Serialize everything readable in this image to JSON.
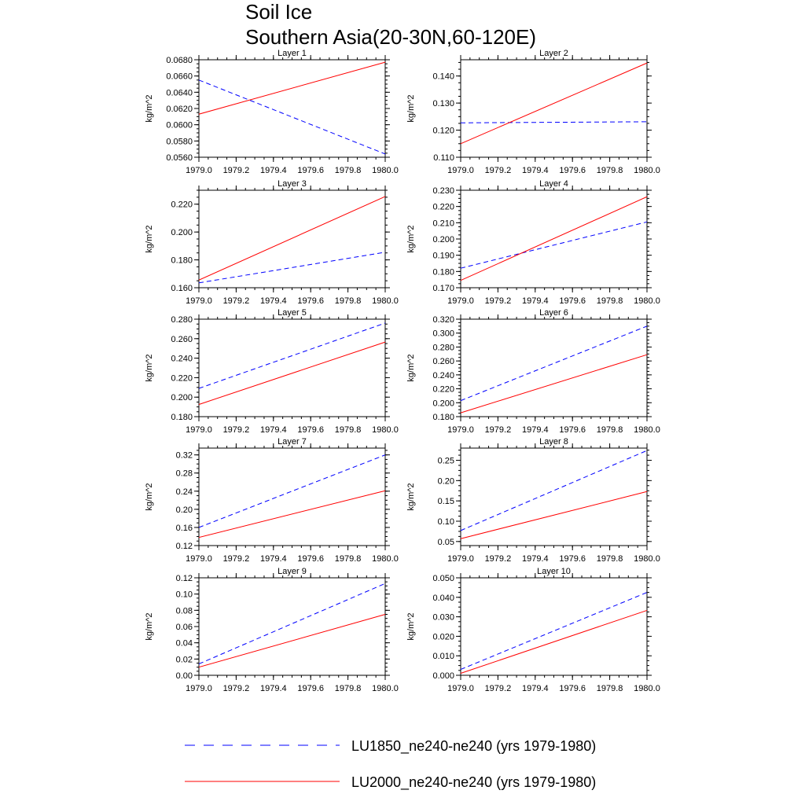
{
  "figure": {
    "title_line1": "Soil Ice",
    "title_line2": "Southern Asia(20-30N,60-120E)"
  },
  "colors": {
    "series1": "#0000ff",
    "series2": "#ff0000"
  },
  "legend": {
    "items": [
      {
        "label": "LU1850_ne240-ne240 (yrs 1979-1980)",
        "color": "#0000ff",
        "style": "dashed"
      },
      {
        "label": "LU2000_ne240-ne240 (yrs 1979-1980)",
        "color": "#ff0000",
        "style": "solid"
      }
    ]
  },
  "chart_data": [
    {
      "type": "line",
      "title": "Layer 1",
      "ylabel": "kg/m^2",
      "x": [
        1979.0,
        1980.0
      ],
      "xlim": [
        1979.0,
        1980.0
      ],
      "xticks": [
        "1979.0",
        "1979.2",
        "1979.4",
        "1979.6",
        "1979.8",
        "1980.0"
      ],
      "ylim": [
        0.056,
        0.068
      ],
      "yticks": [
        "0.0560",
        "0.0580",
        "0.0600",
        "0.0620",
        "0.0640",
        "0.0660",
        "0.0680"
      ],
      "series": [
        {
          "name": "LU1850_ne240-ne240 (yrs 1979-1980)",
          "values": [
            0.0655,
            0.0564
          ]
        },
        {
          "name": "LU2000_ne240-ne240 (yrs 1979-1980)",
          "values": [
            0.0613,
            0.0677
          ]
        }
      ]
    },
    {
      "type": "line",
      "title": "Layer 2",
      "ylabel": "kg/m^2",
      "x": [
        1979.0,
        1980.0
      ],
      "xlim": [
        1979.0,
        1980.0
      ],
      "xticks": [
        "1979.0",
        "1979.2",
        "1979.4",
        "1979.6",
        "1979.8",
        "1980.0"
      ],
      "ylim": [
        0.11,
        0.146
      ],
      "yticks": [
        "0.110",
        "0.120",
        "0.130",
        "0.140"
      ],
      "series": [
        {
          "name": "LU1850_ne240-ne240 (yrs 1979-1980)",
          "values": [
            0.1227,
            0.1231
          ]
        },
        {
          "name": "LU2000_ne240-ne240 (yrs 1979-1980)",
          "values": [
            0.115,
            0.1448
          ]
        }
      ]
    },
    {
      "type": "line",
      "title": "Layer 3",
      "ylabel": "kg/m^2",
      "x": [
        1979.0,
        1980.0
      ],
      "xlim": [
        1979.0,
        1980.0
      ],
      "xticks": [
        "1979.0",
        "1979.2",
        "1979.4",
        "1979.6",
        "1979.8",
        "1980.0"
      ],
      "ylim": [
        0.16,
        0.23
      ],
      "yticks": [
        "0.160",
        "0.180",
        "0.200",
        "0.220"
      ],
      "series": [
        {
          "name": "LU1850_ne240-ne240 (yrs 1979-1980)",
          "values": [
            0.1635,
            0.1855
          ]
        },
        {
          "name": "LU2000_ne240-ne240 (yrs 1979-1980)",
          "values": [
            0.1655,
            0.2255
          ]
        }
      ]
    },
    {
      "type": "line",
      "title": "Layer 4",
      "ylabel": "kg/m^2",
      "x": [
        1979.0,
        1980.0
      ],
      "xlim": [
        1979.0,
        1980.0
      ],
      "xticks": [
        "1979.0",
        "1979.2",
        "1979.4",
        "1979.6",
        "1979.8",
        "1980.0"
      ],
      "ylim": [
        0.17,
        0.23
      ],
      "yticks": [
        "0.170",
        "0.180",
        "0.190",
        "0.200",
        "0.210",
        "0.220",
        "0.230"
      ],
      "series": [
        {
          "name": "LU1850_ne240-ne240 (yrs 1979-1980)",
          "values": [
            0.182,
            0.2105
          ]
        },
        {
          "name": "LU2000_ne240-ne240 (yrs 1979-1980)",
          "values": [
            0.1745,
            0.226
          ]
        }
      ]
    },
    {
      "type": "line",
      "title": "Layer 5",
      "ylabel": "kg/m^2",
      "x": [
        1979.0,
        1980.0
      ],
      "xlim": [
        1979.0,
        1980.0
      ],
      "xticks": [
        "1979.0",
        "1979.2",
        "1979.4",
        "1979.6",
        "1979.8",
        "1980.0"
      ],
      "ylim": [
        0.18,
        0.28
      ],
      "yticks": [
        "0.180",
        "0.200",
        "0.220",
        "0.240",
        "0.260",
        "0.280"
      ],
      "series": [
        {
          "name": "LU1850_ne240-ne240 (yrs 1979-1980)",
          "values": [
            0.209,
            0.276
          ]
        },
        {
          "name": "LU2000_ne240-ne240 (yrs 1979-1980)",
          "values": [
            0.1925,
            0.2565
          ]
        }
      ]
    },
    {
      "type": "line",
      "title": "Layer 6",
      "ylabel": "kg/m^2",
      "x": [
        1979.0,
        1980.0
      ],
      "xlim": [
        1979.0,
        1980.0
      ],
      "xticks": [
        "1979.0",
        "1979.2",
        "1979.4",
        "1979.6",
        "1979.8",
        "1980.0"
      ],
      "ylim": [
        0.18,
        0.32
      ],
      "yticks": [
        "0.180",
        "0.200",
        "0.220",
        "0.240",
        "0.260",
        "0.280",
        "0.300",
        "0.320"
      ],
      "series": [
        {
          "name": "LU1850_ne240-ne240 (yrs 1979-1980)",
          "values": [
            0.203,
            0.31
          ]
        },
        {
          "name": "LU2000_ne240-ne240 (yrs 1979-1980)",
          "values": [
            0.1855,
            0.269
          ]
        }
      ]
    },
    {
      "type": "line",
      "title": "Layer 7",
      "ylabel": "kg/m^2",
      "x": [
        1979.0,
        1980.0
      ],
      "xlim": [
        1979.0,
        1980.0
      ],
      "xticks": [
        "1979.0",
        "1979.2",
        "1979.4",
        "1979.6",
        "1979.8",
        "1980.0"
      ],
      "ylim": [
        0.12,
        0.335
      ],
      "yticks": [
        "0.12",
        "0.16",
        "0.20",
        "0.24",
        "0.28",
        "0.32"
      ],
      "series": [
        {
          "name": "LU1850_ne240-ne240 (yrs 1979-1980)",
          "values": [
            0.16,
            0.32
          ]
        },
        {
          "name": "LU2000_ne240-ne240 (yrs 1979-1980)",
          "values": [
            0.138,
            0.241
          ]
        }
      ]
    },
    {
      "type": "line",
      "title": "Layer 8",
      "ylabel": "kg/m^2",
      "x": [
        1979.0,
        1980.0
      ],
      "xlim": [
        1979.0,
        1980.0
      ],
      "xticks": [
        "1979.0",
        "1979.2",
        "1979.4",
        "1979.6",
        "1979.8",
        "1980.0"
      ],
      "ylim": [
        0.04,
        0.28
      ],
      "yticks": [
        "0.05",
        "0.10",
        "0.15",
        "0.20",
        "0.25"
      ],
      "series": [
        {
          "name": "LU1850_ne240-ne240 (yrs 1979-1980)",
          "values": [
            0.077,
            0.274
          ]
        },
        {
          "name": "LU2000_ne240-ne240 (yrs 1979-1980)",
          "values": [
            0.057,
            0.173
          ]
        }
      ]
    },
    {
      "type": "line",
      "title": "Layer 9",
      "ylabel": "kg/m^2",
      "x": [
        1979.0,
        1980.0
      ],
      "xlim": [
        1979.0,
        1980.0
      ],
      "xticks": [
        "1979.0",
        "1979.2",
        "1979.4",
        "1979.6",
        "1979.8",
        "1980.0"
      ],
      "ylim": [
        0.0,
        0.12
      ],
      "yticks": [
        "0.00",
        "0.02",
        "0.04",
        "0.06",
        "0.08",
        "0.10",
        "0.12"
      ],
      "series": [
        {
          "name": "LU1850_ne240-ne240 (yrs 1979-1980)",
          "values": [
            0.014,
            0.113
          ]
        },
        {
          "name": "LU2000_ne240-ne240 (yrs 1979-1980)",
          "values": [
            0.01,
            0.075
          ]
        }
      ]
    },
    {
      "type": "line",
      "title": "Layer 10",
      "ylabel": "kg/m^2",
      "x": [
        1979.0,
        1980.0
      ],
      "xlim": [
        1979.0,
        1980.0
      ],
      "xticks": [
        "1979.0",
        "1979.2",
        "1979.4",
        "1979.6",
        "1979.8",
        "1980.0"
      ],
      "ylim": [
        0.0,
        0.05
      ],
      "yticks": [
        "0.000",
        "0.010",
        "0.020",
        "0.030",
        "0.040",
        "0.050"
      ],
      "series": [
        {
          "name": "LU1850_ne240-ne240 (yrs 1979-1980)",
          "values": [
            0.003,
            0.0425
          ]
        },
        {
          "name": "LU2000_ne240-ne240 (yrs 1979-1980)",
          "values": [
            0.001,
            0.0333
          ]
        }
      ]
    }
  ]
}
